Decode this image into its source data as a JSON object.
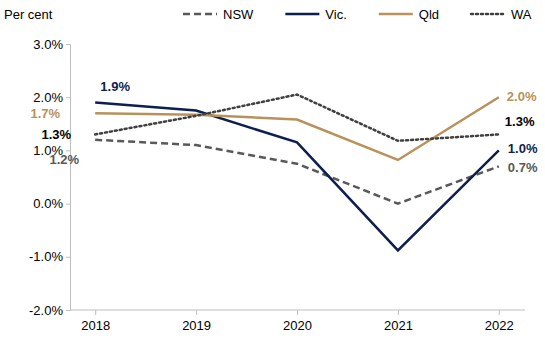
{
  "chart_data": {
    "type": "line",
    "y_label": "Per cent",
    "categories": [
      "2018",
      "2019",
      "2020",
      "2021",
      "2022"
    ],
    "ylim": [
      -2,
      3
    ],
    "yticks": [
      {
        "value": -2,
        "label": "-2.0%"
      },
      {
        "value": -1,
        "label": "-1.0%"
      },
      {
        "value": 0,
        "label": "0.0%"
      },
      {
        "value": 1,
        "label": "1.0%"
      },
      {
        "value": 2,
        "label": "2.0%"
      },
      {
        "value": 3,
        "label": "3.0%"
      }
    ],
    "grid": false,
    "legend": "top",
    "data_labels": true,
    "series": [
      {
        "name": "NSW",
        "color": "#595959",
        "line_style": "dashed",
        "values": [
          1.2,
          1.1,
          0.75,
          0.0,
          0.7
        ],
        "value_labels": [
          "1.2%",
          null,
          null,
          null,
          "0.7%"
        ]
      },
      {
        "name": "Vic.",
        "color": "#0d1f4f",
        "line_style": "solid",
        "values": [
          1.9,
          1.75,
          1.15,
          -0.88,
          1.0
        ],
        "value_labels": [
          "1.9%",
          null,
          null,
          null,
          "1.0%"
        ]
      },
      {
        "name": "Qld",
        "color": "#b8925a",
        "line_style": "solid",
        "values": [
          1.7,
          1.67,
          1.58,
          0.82,
          2.0
        ],
        "value_labels": [
          "1.7%",
          null,
          null,
          null,
          "2.0%"
        ]
      },
      {
        "name": "WA",
        "color": "#404040",
        "line_style": "dotted",
        "values": [
          1.3,
          1.65,
          2.05,
          1.18,
          1.3
        ],
        "value_labels": [
          "1.3%",
          null,
          null,
          null,
          "1.3%"
        ]
      }
    ]
  }
}
